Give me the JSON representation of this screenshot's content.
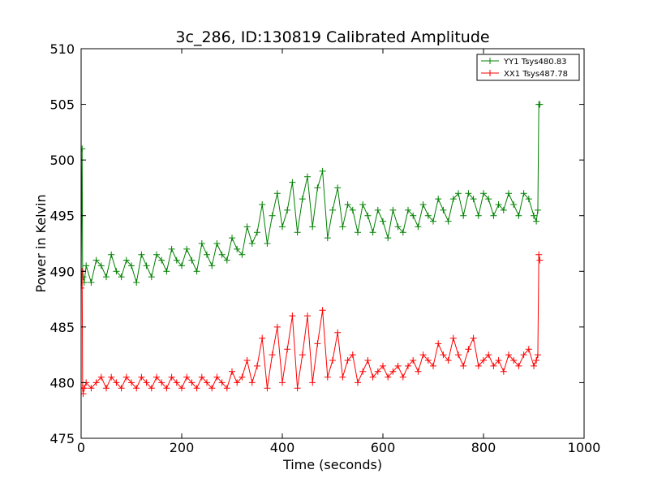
{
  "chart_data": {
    "type": "line",
    "title": "3c_286, ID:130819 Calibrated Amplitude",
    "xlabel": "Time (seconds)",
    "ylabel": "Power in Kelvin",
    "xlim": [
      0,
      1000
    ],
    "ylim": [
      475,
      510
    ],
    "xticks": [
      0,
      200,
      400,
      600,
      800,
      1000
    ],
    "yticks": [
      475,
      480,
      485,
      490,
      495,
      500,
      505,
      510
    ],
    "grid": false,
    "legend_position": "top-right",
    "marker": "+",
    "series": [
      {
        "name": "YY1 Tsys480.83",
        "color": "#008000",
        "x": [
          0,
          2,
          3,
          4,
          6,
          10,
          20,
          30,
          40,
          50,
          60,
          70,
          80,
          90,
          100,
          110,
          120,
          130,
          140,
          150,
          160,
          170,
          180,
          190,
          200,
          210,
          220,
          230,
          240,
          250,
          260,
          270,
          280,
          290,
          300,
          310,
          320,
          330,
          340,
          350,
          360,
          370,
          380,
          390,
          400,
          410,
          420,
          430,
          440,
          450,
          460,
          470,
          480,
          490,
          500,
          510,
          520,
          530,
          540,
          550,
          560,
          570,
          580,
          590,
          600,
          610,
          620,
          630,
          640,
          650,
          660,
          670,
          680,
          690,
          700,
          710,
          720,
          730,
          740,
          750,
          760,
          770,
          780,
          790,
          800,
          810,
          820,
          830,
          840,
          850,
          860,
          870,
          880,
          890,
          900,
          905,
          908,
          910,
          912
        ],
        "y": [
          489.5,
          501.0,
          490.0,
          489.5,
          489.0,
          490.5,
          489.0,
          491.0,
          490.5,
          489.5,
          491.5,
          490.0,
          489.5,
          491.0,
          490.5,
          489.0,
          491.5,
          490.5,
          489.5,
          491.5,
          491.0,
          490.0,
          492.0,
          491.0,
          490.5,
          492.0,
          491.0,
          490.0,
          492.5,
          491.5,
          490.5,
          492.5,
          491.5,
          491.0,
          493.0,
          492.0,
          491.5,
          494.0,
          492.5,
          493.5,
          496.0,
          492.5,
          495.0,
          497.0,
          494.0,
          495.5,
          498.0,
          493.5,
          496.5,
          498.5,
          494.0,
          497.5,
          499.0,
          493.0,
          495.5,
          497.5,
          494.0,
          496.0,
          495.5,
          493.5,
          496.0,
          495.0,
          493.5,
          495.5,
          494.5,
          493.0,
          495.5,
          494.0,
          493.5,
          495.5,
          495.0,
          494.0,
          496.0,
          495.0,
          494.5,
          496.5,
          495.5,
          494.5,
          496.5,
          497.0,
          495.0,
          497.0,
          496.5,
          495.0,
          497.0,
          496.5,
          495.0,
          496.0,
          495.5,
          497.0,
          496.0,
          495.0,
          497.0,
          496.5,
          495.0,
          494.5,
          495.5,
          505.0,
          505.0
        ]
      },
      {
        "name": "XX1 Tsys487.78",
        "color": "#ff0000",
        "x": [
          0,
          2,
          3,
          4,
          6,
          10,
          20,
          30,
          40,
          50,
          60,
          70,
          80,
          90,
          100,
          110,
          120,
          130,
          140,
          150,
          160,
          170,
          180,
          190,
          200,
          210,
          220,
          230,
          240,
          250,
          260,
          270,
          280,
          290,
          300,
          310,
          320,
          330,
          340,
          350,
          360,
          370,
          380,
          390,
          400,
          410,
          420,
          430,
          440,
          450,
          460,
          470,
          480,
          490,
          500,
          510,
          520,
          530,
          540,
          550,
          560,
          570,
          580,
          590,
          600,
          610,
          620,
          630,
          640,
          650,
          660,
          670,
          680,
          690,
          700,
          710,
          720,
          730,
          740,
          750,
          760,
          770,
          780,
          790,
          800,
          810,
          820,
          830,
          840,
          850,
          860,
          870,
          880,
          890,
          900,
          905,
          908,
          910,
          912
        ],
        "y": [
          488.5,
          490.0,
          479.5,
          479.0,
          479.5,
          480.0,
          479.5,
          480.0,
          480.5,
          479.5,
          480.5,
          480.0,
          479.5,
          480.5,
          480.0,
          479.5,
          480.5,
          480.0,
          479.5,
          480.5,
          480.0,
          479.5,
          480.5,
          480.0,
          479.5,
          480.5,
          480.0,
          479.5,
          480.5,
          480.0,
          479.5,
          480.5,
          480.0,
          479.5,
          481.0,
          480.0,
          480.5,
          482.0,
          480.0,
          481.5,
          484.0,
          479.5,
          482.5,
          485.0,
          480.0,
          483.0,
          486.0,
          479.5,
          482.5,
          486.0,
          480.0,
          483.5,
          486.5,
          480.5,
          482.0,
          484.5,
          480.5,
          482.0,
          482.5,
          480.0,
          481.0,
          482.0,
          480.5,
          481.0,
          481.5,
          480.5,
          481.0,
          481.5,
          480.5,
          481.5,
          482.0,
          481.0,
          482.5,
          482.0,
          481.5,
          483.5,
          482.5,
          482.0,
          484.0,
          482.5,
          481.5,
          483.0,
          484.0,
          481.5,
          482.0,
          482.5,
          481.5,
          482.0,
          481.0,
          482.5,
          482.0,
          481.5,
          482.5,
          483.0,
          481.5,
          482.0,
          482.5,
          491.5,
          491.0
        ]
      }
    ]
  }
}
